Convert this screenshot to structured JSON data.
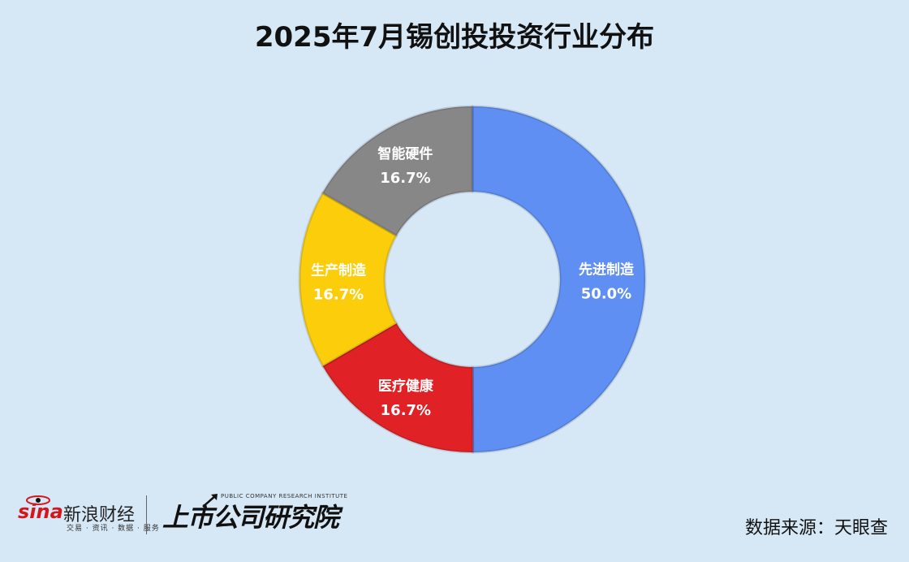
{
  "title": "2025年7月锡创投投资行业分布",
  "source": "数据来源：天眼查",
  "logos": {
    "sina_word": "sina",
    "sina_name": "新浪财经",
    "sina_tagline": "交易 · 资讯 · 数据 · 服务",
    "institute_name": "上市公司研究院",
    "institute_sub": "PUBLIC COMPANY RESEARCH INSTITUTE"
  },
  "chart_data": {
    "type": "pie",
    "donut": true,
    "title": "2025年7月锡创投投资行业分布",
    "slices": [
      {
        "name": "先进制造",
        "value": 50.0,
        "label": "50.0%",
        "color": "#5f8ff2"
      },
      {
        "name": "医疗健康",
        "value": 16.7,
        "label": "16.7%",
        "color": "#e02126"
      },
      {
        "name": "生产制造",
        "value": 16.7,
        "label": "16.7%",
        "color": "#fbcd0a"
      },
      {
        "name": "智能硬件",
        "value": 16.7,
        "label": "16.7%",
        "color": "#878787"
      }
    ],
    "start": "top",
    "direction": "clockwise",
    "legend": "none"
  }
}
